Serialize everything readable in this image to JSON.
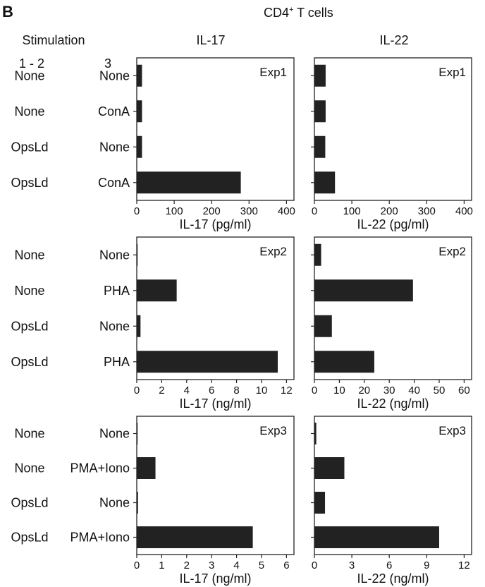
{
  "figure": {
    "panel_letter": "B",
    "title": "CD4",
    "title_superscript": "+",
    "title_rest": " T cells",
    "stimulation_label": "Stimulation",
    "col1_header": "1 - 2",
    "col2_header": "3",
    "cytokine_headers": [
      "IL-17",
      "IL-22"
    ]
  },
  "chart_data": [
    {
      "type": "bar",
      "orientation": "horizontal",
      "experiment": "Exp1",
      "categories": [
        "None / None",
        "None / ConA",
        "OpsLd / None",
        "OpsLd / ConA"
      ],
      "values": [
        14,
        14,
        14,
        278
      ],
      "xlabel": "IL-17 (pg/ml)",
      "xlim": [
        0,
        420
      ],
      "xticks": [
        "0",
        "100",
        "200",
        "300",
        "400"
      ]
    },
    {
      "type": "bar",
      "orientation": "horizontal",
      "experiment": "Exp1",
      "categories": [
        "None / None",
        "None / ConA",
        "OpsLd / None",
        "OpsLd / ConA"
      ],
      "values": [
        30,
        30,
        29,
        55
      ],
      "xlabel": "IL-22 (pg/ml)",
      "xlim": [
        0,
        420
      ],
      "xticks": [
        "0",
        "100",
        "200",
        "300",
        "400"
      ]
    },
    {
      "type": "bar",
      "orientation": "horizontal",
      "experiment": "Exp2",
      "categories": [
        "None / None",
        "None / PHA",
        "OpsLd / None",
        "OpsLd / PHA"
      ],
      "values": [
        0.05,
        3.2,
        0.3,
        11.3
      ],
      "xlabel": "IL-17 (ng/ml)",
      "xlim": [
        0,
        12.6
      ],
      "xticks": [
        "0",
        "2",
        "4",
        "6",
        "8",
        "10",
        "12"
      ]
    },
    {
      "type": "bar",
      "orientation": "horizontal",
      "experiment": "Exp2",
      "categories": [
        "None / None",
        "None / PHA",
        "OpsLd / None",
        "OpsLd / PHA"
      ],
      "values": [
        2.7,
        39.5,
        7,
        24
      ],
      "xlabel": "IL-22 (ng/ml)",
      "xlim": [
        0,
        63
      ],
      "xticks": [
        "0",
        "10",
        "20",
        "30",
        "40",
        "50",
        "60"
      ]
    },
    {
      "type": "bar",
      "orientation": "horizontal",
      "experiment": "Exp3",
      "categories": [
        "None / None",
        "None / PMA+Iono",
        "OpsLd / None",
        "OpsLd / PMA+Iono"
      ],
      "values": [
        0.02,
        0.75,
        0.05,
        4.65
      ],
      "xlabel": "IL-17 (ng/ml)",
      "xlim": [
        0,
        6.3
      ],
      "xticks": [
        "0",
        "1",
        "2",
        "3",
        "4",
        "5",
        "6"
      ]
    },
    {
      "type": "bar",
      "orientation": "horizontal",
      "experiment": "Exp3",
      "categories": [
        "None / None",
        "None / PMA+Iono",
        "OpsLd / None",
        "OpsLd / PMA+Iono"
      ],
      "values": [
        0.15,
        2.4,
        0.85,
        10
      ],
      "xlabel": "IL-22 (ng/ml)",
      "xlim": [
        0,
        12.6
      ],
      "xticks": [
        "0",
        "3",
        "6",
        "9",
        "12"
      ]
    }
  ],
  "row_labels": [
    {
      "col1": [
        "None",
        "None",
        "OpsLd",
        "OpsLd"
      ],
      "col3": [
        "None",
        "ConA",
        "None",
        "ConA"
      ]
    },
    {
      "col1": [
        "None",
        "None",
        "OpsLd",
        "OpsLd"
      ],
      "col3": [
        "None",
        "PHA",
        "None",
        "PHA"
      ]
    },
    {
      "col1": [
        "None",
        "None",
        "OpsLd",
        "OpsLd"
      ],
      "col3": [
        "None",
        "PMA+Iono",
        "None",
        "PMA+Iono"
      ]
    }
  ]
}
